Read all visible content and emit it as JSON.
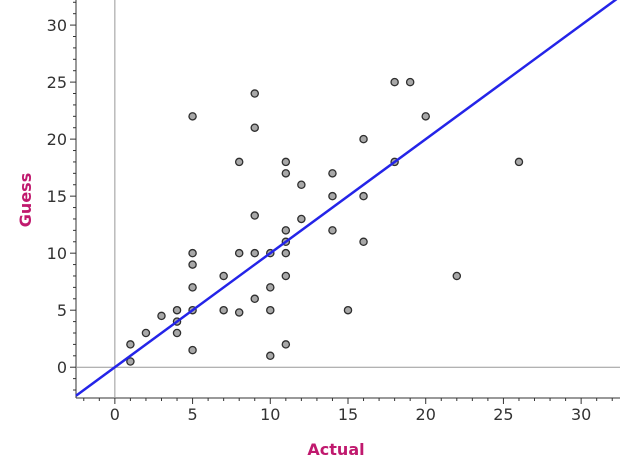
{
  "chart_data": {
    "type": "scatter",
    "title": "",
    "xlabel": "Actual",
    "ylabel": "Guess",
    "xlim": [
      -2.5,
      32.5
    ],
    "ylim": [
      -2.7,
      32.2
    ],
    "xticks": [
      0,
      5,
      10,
      15,
      20,
      25,
      30
    ],
    "yticks": [
      0,
      5,
      10,
      15,
      20,
      25,
      30
    ],
    "grid": false,
    "zero_axes": true,
    "label_color": "#c0196e",
    "point_color": "#666666",
    "line_color": "#2424e8",
    "axis_color": "#999999",
    "points": [
      {
        "x": 1,
        "y": 2
      },
      {
        "x": 1,
        "y": 0.5
      },
      {
        "x": 2,
        "y": 3
      },
      {
        "x": 3,
        "y": 4.5
      },
      {
        "x": 4,
        "y": 5
      },
      {
        "x": 4,
        "y": 4
      },
      {
        "x": 4,
        "y": 3
      },
      {
        "x": 5,
        "y": 22
      },
      {
        "x": 5,
        "y": 10
      },
      {
        "x": 5,
        "y": 9
      },
      {
        "x": 5,
        "y": 7
      },
      {
        "x": 5,
        "y": 5
      },
      {
        "x": 5,
        "y": 1.5
      },
      {
        "x": 7,
        "y": 8
      },
      {
        "x": 7,
        "y": 5
      },
      {
        "x": 8,
        "y": 18
      },
      {
        "x": 8,
        "y": 10
      },
      {
        "x": 8,
        "y": 4.8
      },
      {
        "x": 9,
        "y": 24
      },
      {
        "x": 9,
        "y": 21
      },
      {
        "x": 9,
        "y": 13.3
      },
      {
        "x": 9,
        "y": 10
      },
      {
        "x": 9,
        "y": 6
      },
      {
        "x": 10,
        "y": 10
      },
      {
        "x": 10,
        "y": 7
      },
      {
        "x": 10,
        "y": 5
      },
      {
        "x": 10,
        "y": 1
      },
      {
        "x": 11,
        "y": 18
      },
      {
        "x": 11,
        "y": 17
      },
      {
        "x": 11,
        "y": 12
      },
      {
        "x": 11,
        "y": 11
      },
      {
        "x": 11,
        "y": 10
      },
      {
        "x": 11,
        "y": 8
      },
      {
        "x": 11,
        "y": 2
      },
      {
        "x": 12,
        "y": 16
      },
      {
        "x": 12,
        "y": 13
      },
      {
        "x": 14,
        "y": 17
      },
      {
        "x": 14,
        "y": 15
      },
      {
        "x": 14,
        "y": 12
      },
      {
        "x": 15,
        "y": 5
      },
      {
        "x": 16,
        "y": 20
      },
      {
        "x": 16,
        "y": 15
      },
      {
        "x": 16,
        "y": 11
      },
      {
        "x": 18,
        "y": 25
      },
      {
        "x": 18,
        "y": 18
      },
      {
        "x": 19,
        "y": 25
      },
      {
        "x": 20,
        "y": 22
      },
      {
        "x": 22,
        "y": 8
      },
      {
        "x": 26,
        "y": 18
      }
    ],
    "reference_line": {
      "slope": 1,
      "intercept": 0
    }
  }
}
